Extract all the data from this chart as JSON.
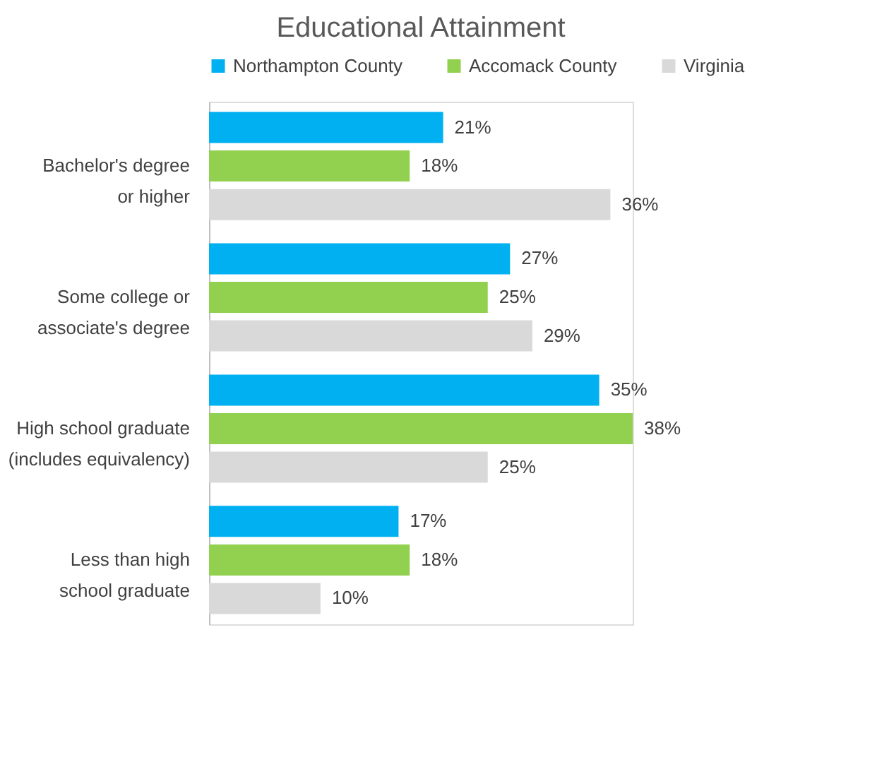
{
  "chart_data": {
    "type": "bar",
    "orientation": "horizontal",
    "title": "Educational Attainment",
    "categories": [
      "Bachelor's degree\nor higher",
      "Some college or\nassociate's degree",
      "High school graduate\n(includes equivalency)",
      "Less than high\nschool graduate"
    ],
    "series": [
      {
        "name": "Northampton County",
        "color": "#00b0f0",
        "values": [
          21,
          27,
          35,
          17
        ],
        "value_labels": [
          "21%",
          "27%",
          "35%",
          "17%"
        ]
      },
      {
        "name": "Accomack County",
        "color": "#92d050",
        "values": [
          18,
          25,
          38,
          18
        ],
        "value_labels": [
          "18%",
          "25%",
          "38%",
          "18%"
        ]
      },
      {
        "name": "Virginia",
        "color": "#d9d9d9",
        "values": [
          36,
          29,
          25,
          10
        ],
        "value_labels": [
          "36%",
          "29%",
          "25%",
          "10%"
        ]
      }
    ],
    "legend": "top",
    "tick_labels": "y"
  }
}
